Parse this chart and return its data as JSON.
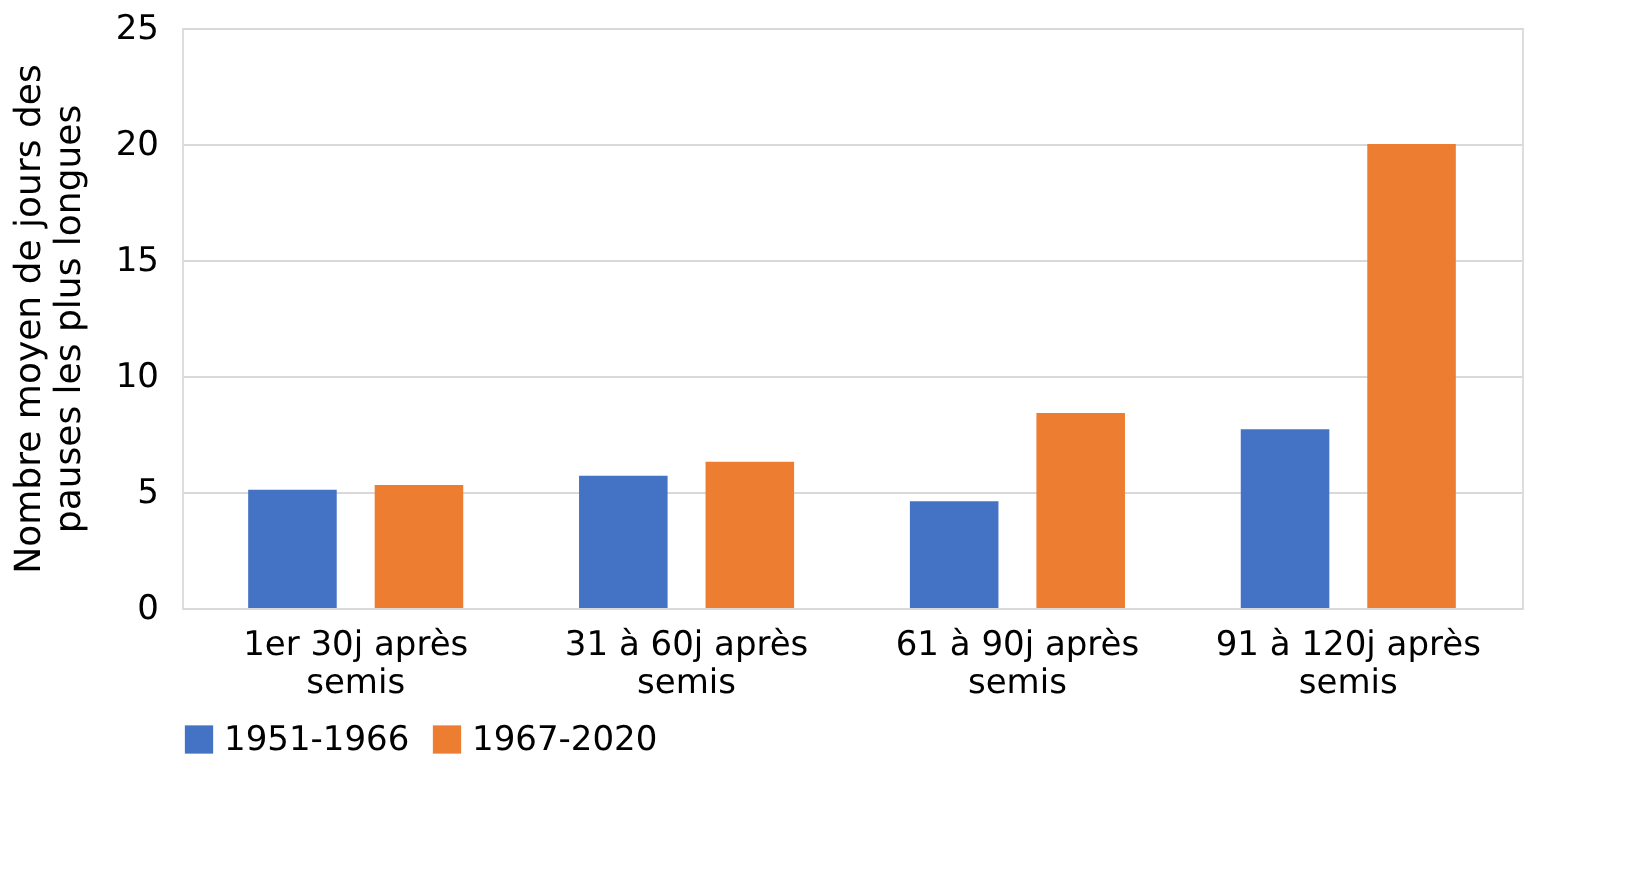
{
  "chart_data": {
    "type": "bar",
    "ylabel": "Nombre moyen de jours des pauses les plus longues",
    "categories": [
      "1er 30j après semis",
      "31 à 60j après semis",
      "61 à 90j après semis",
      "91 à 120j après semis"
    ],
    "series": [
      {
        "name": "1951-1966",
        "color": "#4472c4",
        "values": [
          5.1,
          5.7,
          4.6,
          7.7
        ]
      },
      {
        "name": "1967-2020",
        "color": "#ed7d31",
        "values": [
          5.3,
          6.3,
          8.4,
          20.0
        ]
      }
    ],
    "ylim": [
      0,
      25
    ],
    "yticks": [
      0,
      5,
      10,
      15,
      20,
      25
    ],
    "grid": "y",
    "legend": "bottom"
  }
}
